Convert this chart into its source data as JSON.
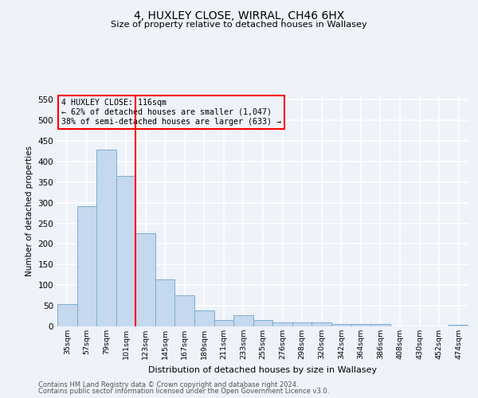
{
  "title": "4, HUXLEY CLOSE, WIRRAL, CH46 6HX",
  "subtitle": "Size of property relative to detached houses in Wallasey",
  "xlabel": "Distribution of detached houses by size in Wallasey",
  "ylabel": "Number of detached properties",
  "footnote1": "Contains HM Land Registry data © Crown copyright and database right 2024.",
  "footnote2": "Contains public sector information licensed under the Open Government Licence v3.0.",
  "categories": [
    "35sqm",
    "57sqm",
    "79sqm",
    "101sqm",
    "123sqm",
    "145sqm",
    "167sqm",
    "189sqm",
    "211sqm",
    "233sqm",
    "255sqm",
    "276sqm",
    "298sqm",
    "320sqm",
    "342sqm",
    "364sqm",
    "386sqm",
    "408sqm",
    "430sqm",
    "452sqm",
    "474sqm"
  ],
  "values": [
    55,
    292,
    428,
    365,
    225,
    113,
    75,
    38,
    16,
    27,
    15,
    10,
    10,
    10,
    5,
    5,
    5,
    0,
    0,
    0,
    3
  ],
  "bar_color": "#c5d8ed",
  "bar_edge_color": "#7aaed4",
  "vline_color": "red",
  "vline_x_index": 4,
  "annotation_title": "4 HUXLEY CLOSE: 116sqm",
  "annotation_line1": "← 62% of detached houses are smaller (1,047)",
  "annotation_line2": "38% of semi-detached houses are larger (633) →",
  "annotation_box_color": "red",
  "ylim": [
    0,
    560
  ],
  "yticks": [
    0,
    50,
    100,
    150,
    200,
    250,
    300,
    350,
    400,
    450,
    500,
    550
  ],
  "bg_color": "#eef2f9",
  "grid_color": "white"
}
